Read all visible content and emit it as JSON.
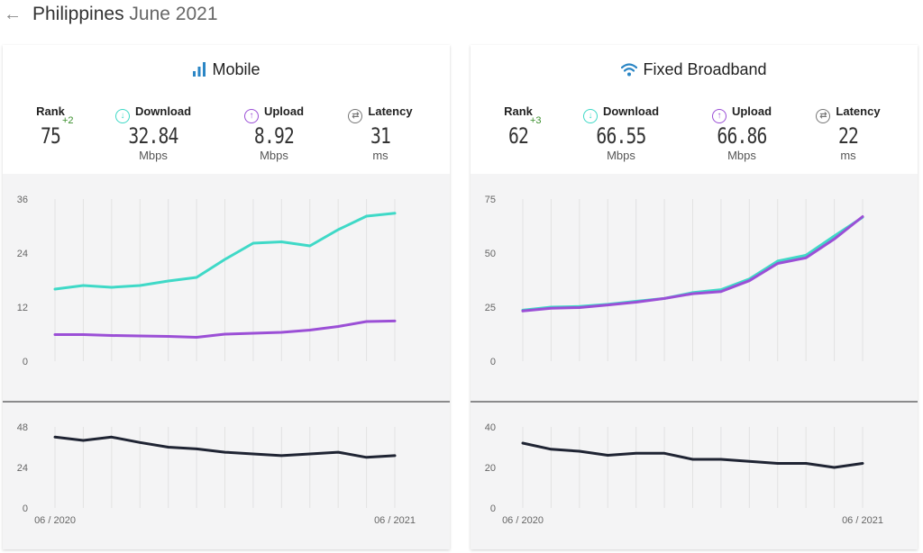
{
  "header": {
    "back_icon": "arrow-left-icon",
    "country": "Philippines",
    "date": "June 2021"
  },
  "colors": {
    "download": "#3fd9c7",
    "upload": "#9b4fd6",
    "latency": "#1f2433",
    "rank_change": "#3a8f2c"
  },
  "panels": {
    "mobile": {
      "title": "Mobile",
      "icon": "signal-bars-icon",
      "rank": {
        "label": "Rank",
        "value": "75",
        "change": "+2"
      },
      "download": {
        "label": "Download",
        "value": "32.84",
        "unit": "Mbps"
      },
      "upload": {
        "label": "Upload",
        "value": "8.92",
        "unit": "Mbps"
      },
      "latency": {
        "label": "Latency",
        "value": "31",
        "unit": "ms"
      }
    },
    "fixed": {
      "title": "Fixed Broadband",
      "icon": "wifi-icon",
      "rank": {
        "label": "Rank",
        "value": "62",
        "change": "+3"
      },
      "download": {
        "label": "Download",
        "value": "66.55",
        "unit": "Mbps"
      },
      "upload": {
        "label": "Upload",
        "value": "66.86",
        "unit": "Mbps"
      },
      "latency": {
        "label": "Latency",
        "value": "22",
        "unit": "ms"
      }
    }
  },
  "chart_data": [
    {
      "type": "line",
      "panel": "mobile",
      "x_start_label": "06 / 2020",
      "x_end_label": "06 / 2021",
      "speed": {
        "yticks": [
          0,
          12,
          24,
          36
        ],
        "ylim": [
          0,
          36
        ],
        "series": [
          {
            "key": "download",
            "values": [
              16,
              16.8,
              16.4,
              16.8,
              17.8,
              18.6,
              22.6,
              26.2,
              26.5,
              25.6,
              29.2,
              32.2,
              32.84
            ]
          },
          {
            "key": "upload",
            "values": [
              5.9,
              5.9,
              5.7,
              5.6,
              5.5,
              5.3,
              6.0,
              6.2,
              6.4,
              6.9,
              7.7,
              8.8,
              8.92
            ]
          }
        ]
      },
      "latency": {
        "yticks": [
          0,
          24,
          48
        ],
        "ylim": [
          0,
          48
        ],
        "values": [
          42,
          40,
          42,
          38.8,
          36,
          35,
          33,
          32,
          31,
          32,
          33,
          30,
          31
        ]
      }
    },
    {
      "type": "line",
      "panel": "fixed",
      "x_start_label": "06 / 2020",
      "x_end_label": "06 / 2021",
      "speed": {
        "yticks": [
          0,
          25,
          50,
          75
        ],
        "ylim": [
          0,
          75
        ],
        "series": [
          {
            "key": "download",
            "values": [
              23.6,
              25,
              25.3,
              26.3,
              27.7,
              29,
              31.7,
              33.1,
              38,
              46.3,
              49,
              57.9,
              66.55
            ]
          },
          {
            "key": "upload",
            "values": [
              23.2,
              24.5,
              24.8,
              26,
              27.3,
              29,
              31.2,
              32.2,
              37.2,
              45.2,
              47.8,
              56.5,
              66.86
            ]
          }
        ]
      },
      "latency": {
        "yticks": [
          0,
          20,
          40
        ],
        "ylim": [
          0,
          40
        ],
        "values": [
          32,
          29,
          28,
          26,
          27,
          27,
          24,
          24,
          23,
          22,
          22,
          20,
          22
        ]
      }
    }
  ]
}
